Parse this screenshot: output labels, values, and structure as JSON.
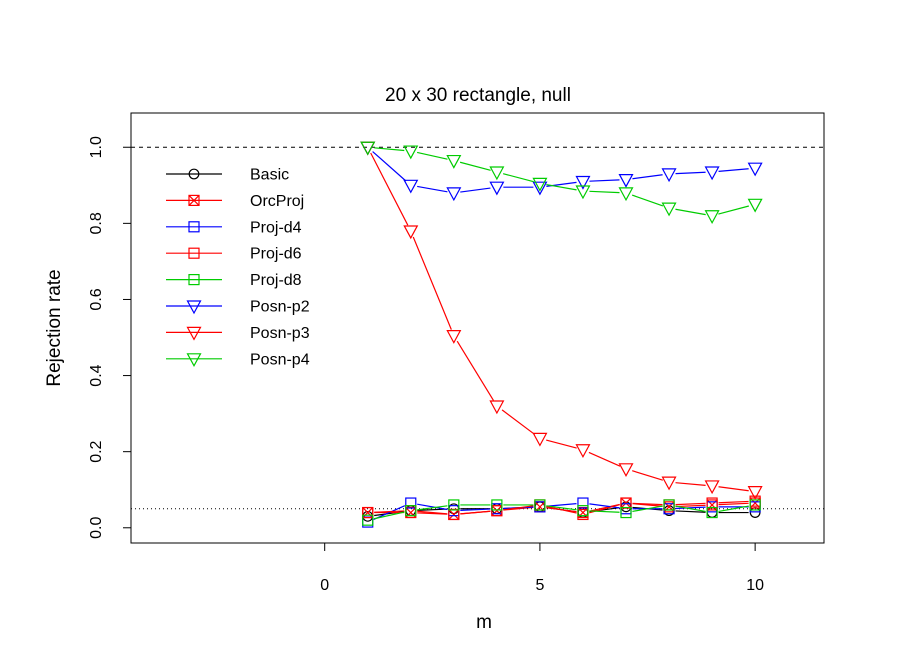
{
  "chart_data": {
    "type": "line",
    "title": "20 x 30 rectangle, null",
    "xlabel": "m",
    "ylabel": "Rejection rate",
    "xlim": [
      -4.5,
      11.6
    ],
    "ylim": [
      -0.04,
      1.09
    ],
    "x_ticks": [
      0,
      5,
      10
    ],
    "y_ticks": [
      0.0,
      0.2,
      0.4,
      0.6,
      0.8,
      1.0
    ],
    "x_tick_labels": [
      "0",
      "5",
      "10"
    ],
    "y_tick_labels": [
      "0.0",
      "0.2",
      "0.4",
      "0.6",
      "0.8",
      "1.0"
    ],
    "reference_lines": [
      {
        "y": 1.0,
        "style": "dashed"
      },
      {
        "y": 0.05,
        "style": "dotted"
      }
    ],
    "grid": false,
    "legend_position": "top-left",
    "x": [
      1,
      2,
      3,
      4,
      5,
      6,
      7,
      8,
      9,
      10
    ],
    "series": [
      {
        "name": "Basic",
        "color": "#000000",
        "marker": "circle",
        "values": [
          0.03,
          0.045,
          0.05,
          0.05,
          0.055,
          0.04,
          0.055,
          0.045,
          0.04,
          0.04
        ]
      },
      {
        "name": "OrcProj",
        "color": "#ff0000",
        "marker": "square-x",
        "values": [
          0.04,
          0.04,
          0.035,
          0.045,
          0.055,
          0.04,
          0.065,
          0.055,
          0.06,
          0.065
        ]
      },
      {
        "name": "Proj-d4",
        "color": "#0000ff",
        "marker": "square",
        "values": [
          0.015,
          0.065,
          0.045,
          0.05,
          0.055,
          0.065,
          0.05,
          0.05,
          0.055,
          0.055
        ]
      },
      {
        "name": "Proj-d6",
        "color": "#ff0000",
        "marker": "square",
        "values": [
          0.04,
          0.045,
          0.035,
          0.045,
          0.06,
          0.035,
          0.065,
          0.06,
          0.065,
          0.07
        ]
      },
      {
        "name": "Proj-d8",
        "color": "#00cc00",
        "marker": "square",
        "values": [
          0.02,
          0.045,
          0.06,
          0.06,
          0.06,
          0.045,
          0.04,
          0.06,
          0.04,
          0.06
        ]
      },
      {
        "name": "Posn-p2",
        "color": "#0000ff",
        "marker": "triangle-down",
        "values": [
          1.0,
          0.9,
          0.88,
          0.895,
          0.895,
          0.91,
          0.915,
          0.93,
          0.935,
          0.945
        ]
      },
      {
        "name": "Posn-p3",
        "color": "#ff0000",
        "marker": "triangle-down",
        "values": [
          1.0,
          0.78,
          0.505,
          0.32,
          0.235,
          0.205,
          0.155,
          0.12,
          0.11,
          0.095
        ]
      },
      {
        "name": "Posn-p4",
        "color": "#00cc00",
        "marker": "triangle-down",
        "values": [
          1.0,
          0.99,
          0.965,
          0.935,
          0.905,
          0.885,
          0.88,
          0.84,
          0.82,
          0.85
        ]
      }
    ]
  }
}
